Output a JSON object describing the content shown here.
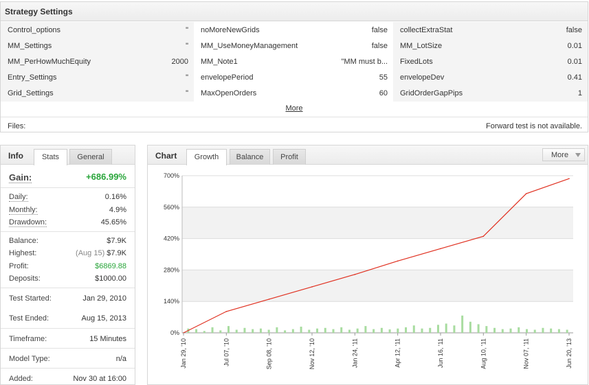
{
  "settings": {
    "title": "Strategy Settings",
    "col1": [
      {
        "key": "Control_options",
        "value": "\""
      },
      {
        "key": "MM_Settings",
        "value": "\""
      },
      {
        "key": "MM_PerHowMuchEquity",
        "value": "2000"
      },
      {
        "key": "Entry_Settings",
        "value": "\""
      },
      {
        "key": "Grid_Settings",
        "value": "\""
      }
    ],
    "col2": [
      {
        "key": "noMoreNewGrids",
        "value": "false"
      },
      {
        "key": "MM_UseMoneyManagement",
        "value": "false"
      },
      {
        "key": "MM_Note1",
        "value": "\"MM must b..."
      },
      {
        "key": "envelopePeriod",
        "value": "55"
      },
      {
        "key": "MaxOpenOrders",
        "value": "60"
      }
    ],
    "col3": [
      {
        "key": "collectExtraStat",
        "value": "false"
      },
      {
        "key": "MM_LotSize",
        "value": "0.01"
      },
      {
        "key": "FixedLots",
        "value": "0.01"
      },
      {
        "key": "envelopeDev",
        "value": "0.41"
      },
      {
        "key": "GridOrderGapPips",
        "value": "1"
      }
    ],
    "more_label": "More",
    "files_label": "Files:",
    "forward_test": "Forward test is not available."
  },
  "info": {
    "title": "Info",
    "tabs": [
      "Stats",
      "General"
    ],
    "gain_label": "Gain:",
    "gain_value": "+686.99%",
    "growth": [
      {
        "key": "Daily:",
        "value": "0.16%"
      },
      {
        "key": "Monthly:",
        "value": "4.9%"
      },
      {
        "key": "Drawdown:",
        "value": "45.65%"
      }
    ],
    "balance": [
      {
        "key": "Balance:",
        "value": "$7.9K"
      },
      {
        "key": "Highest:",
        "sub": "(Aug 15)",
        "value": "$7.9K"
      },
      {
        "key": "Profit:",
        "value": "$6869.88"
      },
      {
        "key": "Deposits:",
        "value": "$1000.00"
      }
    ],
    "test_started_label": "Test Started:",
    "test_started": "Jan 29, 2010",
    "test_ended_label": "Test Ended:",
    "test_ended": "Aug 15, 2013",
    "timeframe_label": "Timeframe:",
    "timeframe": "15 Minutes",
    "model_type_label": "Model Type:",
    "model_type": "n/a",
    "added_label": "Added:",
    "added": "Nov 30 at 16:00"
  },
  "chart": {
    "title": "Chart",
    "tabs": [
      "Growth",
      "Balance",
      "Profit"
    ],
    "more_label": "More"
  },
  "chart_data": {
    "type": "line",
    "title": "",
    "xlabel": "",
    "ylabel": "",
    "y_tick_labels": [
      "0%",
      "140%",
      "280%",
      "420%",
      "560%",
      "700%"
    ],
    "ylim": [
      0,
      700
    ],
    "x_tick_labels": [
      "Jan 29, '10",
      "Jul 07, '10",
      "Sep 08, '10",
      "Nov 12, '10",
      "Jan 24, '11",
      "Apr 12, '11",
      "Jun 16, '11",
      "Aug 10, '11",
      "Nov 07, '11",
      "Jun 20, '13"
    ],
    "series": [
      {
        "type": "line",
        "color": "#e03020",
        "x": [
          "Jan 29, '10",
          "Jul 07, '10",
          "Sep 08, '10",
          "Nov 12, '10",
          "Jan 24, '11",
          "Apr 12, '11",
          "Jun 16, '11",
          "Aug 10, '11",
          "Nov 07, '11",
          "Jun 20, '13"
        ],
        "values": [
          0,
          95,
          150,
          205,
          260,
          320,
          375,
          430,
          620,
          687
        ]
      },
      {
        "type": "bar",
        "color": "#a8dca0",
        "note_values": "daily activity bars along the bottom",
        "values": [
          35,
          30,
          15,
          45,
          20,
          55,
          25,
          40,
          30,
          35,
          25,
          45,
          20,
          30,
          50,
          25,
          35,
          40,
          30,
          45,
          25,
          35,
          55,
          30,
          40,
          28,
          35,
          45,
          60,
          35,
          40,
          65,
          75,
          60,
          140,
          90,
          70,
          55,
          40,
          30,
          35,
          45,
          30,
          25,
          40,
          35,
          30,
          25
        ]
      }
    ],
    "grid": true,
    "legend": "none"
  }
}
